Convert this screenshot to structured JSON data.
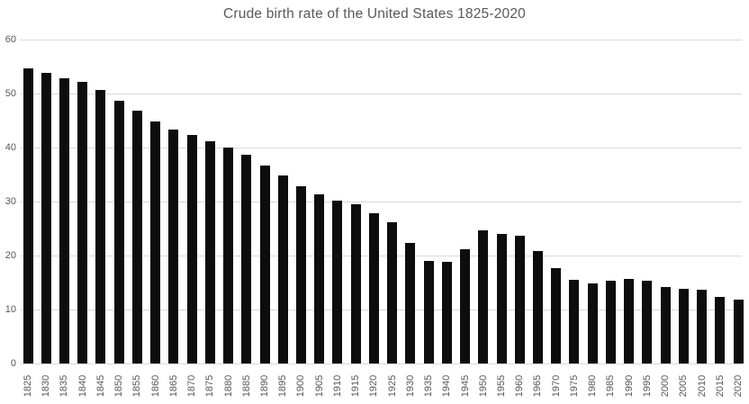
{
  "chart_data": {
    "type": "bar",
    "title": "Crude birth rate of the United States 1825-2020",
    "xlabel": "",
    "ylabel": "",
    "categories": [
      "1825",
      "1830",
      "1835",
      "1840",
      "1845",
      "1850",
      "1855",
      "1860",
      "1865",
      "1870",
      "1875",
      "1880",
      "1885",
      "1890",
      "1895",
      "1900",
      "1905",
      "1910",
      "1915",
      "1920",
      "1925",
      "1930",
      "1935",
      "1940",
      "1945",
      "1950",
      "1955",
      "1960",
      "1965",
      "1970",
      "1975",
      "1980",
      "1985",
      "1990",
      "1995",
      "2000",
      "2005",
      "2010",
      "2015",
      "2020"
    ],
    "values": [
      54.6,
      53.8,
      52.9,
      52.1,
      50.6,
      48.7,
      46.8,
      44.8,
      43.4,
      42.4,
      41.1,
      40.0,
      38.6,
      36.6,
      34.8,
      32.8,
      31.4,
      30.1,
      29.5,
      27.8,
      26.1,
      22.3,
      19.0,
      18.8,
      21.1,
      24.6,
      24.0,
      23.7,
      20.9,
      17.6,
      15.5,
      14.8,
      15.3,
      15.6,
      15.4,
      14.1,
      13.9,
      13.7,
      12.4,
      11.9
    ],
    "ylim": [
      0,
      60
    ],
    "yticks": [
      0,
      10,
      20,
      30,
      40,
      50,
      60
    ],
    "grid": true,
    "legend_position": "none",
    "x_tick_rotation_degrees": 90,
    "colors": {
      "bar": "#0d0d0d",
      "gridline": "#d9d9d9",
      "axis_text": "#595959",
      "title_text": "#595959",
      "background": "#ffffff"
    }
  }
}
